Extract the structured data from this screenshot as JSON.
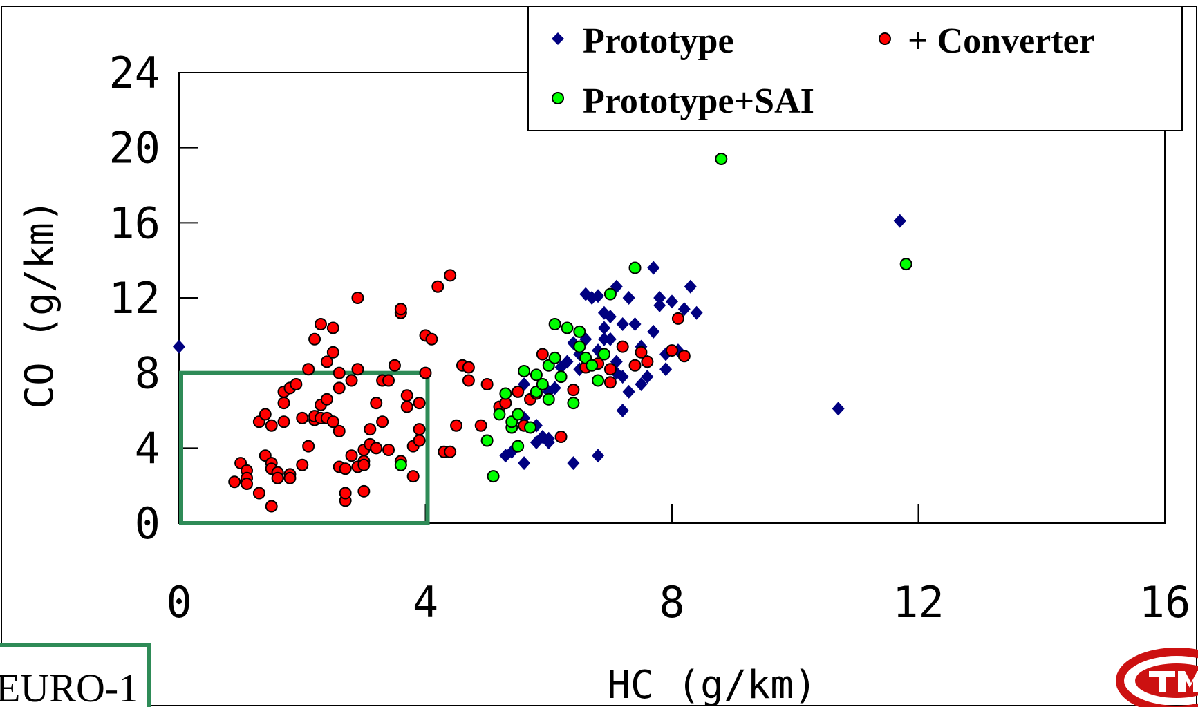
{
  "chart_data": {
    "type": "scatter",
    "xlabel": "HC (g/km)",
    "ylabel": "CO (g/km)",
    "xlim": [
      0,
      16
    ],
    "ylim": [
      0,
      24
    ],
    "x_ticks": [
      "0",
      "4",
      "8",
      "12",
      "16"
    ],
    "y_ticks": [
      "0",
      "4",
      "8",
      "12",
      "16",
      "20",
      "24"
    ],
    "legend": "top-right",
    "series": [
      {
        "name": "Prototype",
        "marker": "diamond",
        "color": "#000080",
        "points": [
          [
            0.0,
            9.4
          ],
          [
            5.3,
            3.6
          ],
          [
            5.4,
            3.8
          ],
          [
            5.6,
            3.2
          ],
          [
            5.6,
            5.6
          ],
          [
            5.6,
            7.4
          ],
          [
            5.8,
            5.2
          ],
          [
            5.8,
            4.3
          ],
          [
            5.9,
            4.6
          ],
          [
            6.0,
            4.5
          ],
          [
            6.0,
            4.3
          ],
          [
            6.0,
            7.0
          ],
          [
            6.1,
            7.2
          ],
          [
            6.2,
            8.3
          ],
          [
            6.3,
            8.6
          ],
          [
            6.4,
            9.6
          ],
          [
            6.4,
            3.2
          ],
          [
            6.5,
            9.0
          ],
          [
            6.5,
            8.2
          ],
          [
            6.6,
            9.8
          ],
          [
            6.6,
            12.2
          ],
          [
            6.7,
            12.0
          ],
          [
            6.8,
            12.1
          ],
          [
            6.8,
            9.2
          ],
          [
            6.8,
            3.6
          ],
          [
            6.9,
            9.8
          ],
          [
            6.9,
            10.4
          ],
          [
            6.9,
            11.2
          ],
          [
            7.0,
            9.8
          ],
          [
            7.0,
            11.0
          ],
          [
            7.1,
            8.6
          ],
          [
            7.1,
            8.0
          ],
          [
            7.1,
            12.6
          ],
          [
            7.2,
            7.8
          ],
          [
            7.2,
            10.6
          ],
          [
            7.2,
            6.0
          ],
          [
            7.3,
            7.0
          ],
          [
            7.3,
            12.0
          ],
          [
            7.4,
            10.6
          ],
          [
            7.5,
            9.4
          ],
          [
            7.5,
            7.4
          ],
          [
            7.6,
            8.6
          ],
          [
            7.6,
            7.8
          ],
          [
            7.7,
            10.2
          ],
          [
            7.7,
            13.6
          ],
          [
            7.8,
            12.0
          ],
          [
            7.8,
            11.6
          ],
          [
            7.9,
            9.0
          ],
          [
            7.9,
            8.2
          ],
          [
            8.0,
            11.8
          ],
          [
            8.1,
            9.2
          ],
          [
            8.2,
            11.4
          ],
          [
            8.3,
            12.6
          ],
          [
            8.4,
            11.2
          ],
          [
            10.7,
            6.1
          ],
          [
            11.7,
            16.1
          ]
        ]
      },
      {
        "name": "+ Converter",
        "marker": "circle",
        "color": "#ff0000",
        "points": [
          [
            0.9,
            2.2
          ],
          [
            1.0,
            3.2
          ],
          [
            1.1,
            2.8
          ],
          [
            1.1,
            2.4
          ],
          [
            1.1,
            2.1
          ],
          [
            1.3,
            1.6
          ],
          [
            1.3,
            5.4
          ],
          [
            1.4,
            3.6
          ],
          [
            1.4,
            5.8
          ],
          [
            1.5,
            3.2
          ],
          [
            1.5,
            5.2
          ],
          [
            1.5,
            2.9
          ],
          [
            1.5,
            0.9
          ],
          [
            1.6,
            2.7
          ],
          [
            1.6,
            2.4
          ],
          [
            1.7,
            5.4
          ],
          [
            1.7,
            6.4
          ],
          [
            1.7,
            7.0
          ],
          [
            1.8,
            2.6
          ],
          [
            1.8,
            2.4
          ],
          [
            1.8,
            7.2
          ],
          [
            1.9,
            7.4
          ],
          [
            2.0,
            3.1
          ],
          [
            2.0,
            5.6
          ],
          [
            2.1,
            8.2
          ],
          [
            2.1,
            4.1
          ],
          [
            2.2,
            5.5
          ],
          [
            2.2,
            9.8
          ],
          [
            2.2,
            5.7
          ],
          [
            2.3,
            6.3
          ],
          [
            2.3,
            5.6
          ],
          [
            2.3,
            10.6
          ],
          [
            2.4,
            8.6
          ],
          [
            2.4,
            6.6
          ],
          [
            2.4,
            5.6
          ],
          [
            2.5,
            5.4
          ],
          [
            2.5,
            9.1
          ],
          [
            2.5,
            10.4
          ],
          [
            2.6,
            3.0
          ],
          [
            2.6,
            7.2
          ],
          [
            2.6,
            8.0
          ],
          [
            2.6,
            4.9
          ],
          [
            2.7,
            2.9
          ],
          [
            2.7,
            1.2
          ],
          [
            2.7,
            1.6
          ],
          [
            2.8,
            3.6
          ],
          [
            2.8,
            7.6
          ],
          [
            2.9,
            3.0
          ],
          [
            2.9,
            8.2
          ],
          [
            2.9,
            12.0
          ],
          [
            3.0,
            3.9
          ],
          [
            3.0,
            3.3
          ],
          [
            3.0,
            1.7
          ],
          [
            3.0,
            3.1
          ],
          [
            3.1,
            4.2
          ],
          [
            3.1,
            5.0
          ],
          [
            3.2,
            6.4
          ],
          [
            3.2,
            4.0
          ],
          [
            3.3,
            7.6
          ],
          [
            3.3,
            5.4
          ],
          [
            3.4,
            7.6
          ],
          [
            3.4,
            3.9
          ],
          [
            3.5,
            8.4
          ],
          [
            3.6,
            11.2
          ],
          [
            3.6,
            11.4
          ],
          [
            3.6,
            3.3
          ],
          [
            3.7,
            6.8
          ],
          [
            3.7,
            6.2
          ],
          [
            3.8,
            4.1
          ],
          [
            3.8,
            2.5
          ],
          [
            3.9,
            4.4
          ],
          [
            3.9,
            6.4
          ],
          [
            3.9,
            5.0
          ],
          [
            4.0,
            8.0
          ],
          [
            4.0,
            10.0
          ],
          [
            4.1,
            9.8
          ],
          [
            4.2,
            12.6
          ],
          [
            4.3,
            3.8
          ],
          [
            4.4,
            13.2
          ],
          [
            4.4,
            3.8
          ],
          [
            4.5,
            5.2
          ],
          [
            4.6,
            8.4
          ],
          [
            4.7,
            7.6
          ],
          [
            4.7,
            8.3
          ],
          [
            4.9,
            5.2
          ],
          [
            5.0,
            7.4
          ],
          [
            5.2,
            6.2
          ],
          [
            5.3,
            6.4
          ],
          [
            5.5,
            7.0
          ],
          [
            5.6,
            5.2
          ],
          [
            5.7,
            6.6
          ],
          [
            5.8,
            6.9
          ],
          [
            5.9,
            9.0
          ],
          [
            6.2,
            4.6
          ],
          [
            6.4,
            7.1
          ],
          [
            6.6,
            8.3
          ],
          [
            6.8,
            8.5
          ],
          [
            7.0,
            7.5
          ],
          [
            7.0,
            8.2
          ],
          [
            7.2,
            9.4
          ],
          [
            7.4,
            8.4
          ],
          [
            7.5,
            9.1
          ],
          [
            7.6,
            8.6
          ],
          [
            8.0,
            9.2
          ],
          [
            8.1,
            10.9
          ],
          [
            8.2,
            8.9
          ]
        ]
      },
      {
        "name": "Prototype+SAI",
        "marker": "circle",
        "color": "#00ff00",
        "points": [
          [
            3.6,
            3.1
          ],
          [
            5.0,
            4.4
          ],
          [
            5.1,
            2.5
          ],
          [
            5.2,
            5.8
          ],
          [
            5.3,
            6.9
          ],
          [
            5.4,
            5.1
          ],
          [
            5.4,
            5.4
          ],
          [
            5.5,
            4.1
          ],
          [
            5.5,
            5.8
          ],
          [
            5.6,
            8.1
          ],
          [
            5.7,
            5.1
          ],
          [
            5.8,
            7.9
          ],
          [
            5.8,
            7.0
          ],
          [
            5.9,
            7.4
          ],
          [
            6.0,
            8.4
          ],
          [
            6.0,
            6.6
          ],
          [
            6.1,
            8.8
          ],
          [
            6.1,
            10.6
          ],
          [
            6.2,
            7.8
          ],
          [
            6.3,
            10.4
          ],
          [
            6.4,
            6.4
          ],
          [
            6.5,
            9.4
          ],
          [
            6.5,
            10.2
          ],
          [
            6.6,
            8.8
          ],
          [
            6.7,
            8.4
          ],
          [
            6.8,
            7.6
          ],
          [
            6.9,
            9.0
          ],
          [
            7.0,
            12.2
          ],
          [
            7.4,
            13.6
          ],
          [
            8.8,
            19.4
          ],
          [
            11.8,
            13.8
          ]
        ]
      }
    ],
    "annotations": [
      {
        "type": "rectangle",
        "label": "EURO-1",
        "x_range": [
          0,
          4
        ],
        "y_range": [
          0,
          8
        ],
        "color": "#2e8b57"
      }
    ]
  },
  "euro_label": "EURO-1"
}
